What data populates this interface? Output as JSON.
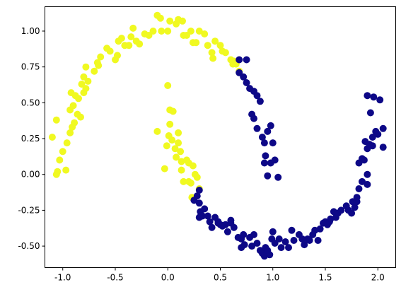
{
  "chart_data": {
    "type": "scatter",
    "title": "",
    "xlabel": "",
    "ylabel": "",
    "xlim": [
      -1.17,
      2.17
    ],
    "ylim": [
      -0.65,
      1.17
    ],
    "xticks": [
      "-1.0",
      "-0.5",
      "0.0",
      "0.5",
      "1.0",
      "1.5",
      "2.0"
    ],
    "xtick_values": [
      -1.0,
      -0.5,
      0.0,
      0.5,
      1.0,
      1.5,
      2.0
    ],
    "yticks": [
      "-0.50",
      "-0.25",
      "0.00",
      "0.25",
      "0.50",
      "0.75",
      "1.00"
    ],
    "ytick_values": [
      -0.5,
      -0.25,
      0.0,
      0.25,
      0.5,
      0.75,
      1.0
    ],
    "grid": false,
    "series": [
      {
        "color": "#f0f921",
        "points": [
          [
            -1.1,
            0.26
          ],
          [
            -1.06,
            0.38
          ],
          [
            -1.05,
            0.02
          ],
          [
            -1.06,
            0.0
          ],
          [
            -1.03,
            0.1
          ],
          [
            -1.0,
            0.16
          ],
          [
            -0.97,
            0.03
          ],
          [
            -0.96,
            0.22
          ],
          [
            -0.93,
            0.29
          ],
          [
            -0.93,
            0.45
          ],
          [
            -0.92,
            0.57
          ],
          [
            -0.91,
            0.33
          ],
          [
            -0.9,
            0.48
          ],
          [
            -0.89,
            0.36
          ],
          [
            -0.88,
            0.55
          ],
          [
            -0.86,
            0.42
          ],
          [
            -0.85,
            0.53
          ],
          [
            -0.83,
            0.4
          ],
          [
            -0.82,
            0.63
          ],
          [
            -0.8,
            0.68
          ],
          [
            -0.8,
            0.57
          ],
          [
            -0.78,
            0.6
          ],
          [
            -0.78,
            0.75
          ],
          [
            -0.76,
            0.65
          ],
          [
            -0.7,
            0.72
          ],
          [
            -0.67,
            0.78
          ],
          [
            -0.66,
            0.76
          ],
          [
            -0.64,
            0.82
          ],
          [
            -0.58,
            0.88
          ],
          [
            -0.55,
            0.86
          ],
          [
            -0.5,
            0.8
          ],
          [
            -0.48,
            0.83
          ],
          [
            -0.47,
            0.93
          ],
          [
            -0.44,
            0.95
          ],
          [
            -0.41,
            0.9
          ],
          [
            -0.37,
            0.9
          ],
          [
            -0.35,
            0.96
          ],
          [
            -0.33,
            1.02
          ],
          [
            -0.3,
            0.93
          ],
          [
            -0.27,
            0.91
          ],
          [
            -0.22,
            0.98
          ],
          [
            -0.18,
            0.97
          ],
          [
            -0.14,
            1.0
          ],
          [
            -0.1,
            1.11
          ],
          [
            -0.07,
            1.09
          ],
          [
            -0.06,
            1.0
          ],
          [
            0.0,
            1.0
          ],
          [
            0.02,
            1.07
          ],
          [
            0.08,
            1.05
          ],
          [
            0.1,
            1.08
          ],
          [
            0.14,
            1.07
          ],
          [
            0.15,
            0.97
          ],
          [
            0.18,
            0.97
          ],
          [
            0.22,
            1.0
          ],
          [
            0.24,
            0.92
          ],
          [
            0.27,
            0.92
          ],
          [
            0.3,
            1.0
          ],
          [
            0.35,
            0.98
          ],
          [
            0.38,
            0.9
          ],
          [
            0.42,
            0.85
          ],
          [
            0.43,
            0.81
          ],
          [
            0.45,
            0.93
          ],
          [
            0.5,
            0.9
          ],
          [
            0.52,
            0.86
          ],
          [
            0.55,
            0.85
          ],
          [
            0.6,
            0.8
          ],
          [
            0.62,
            0.77
          ],
          [
            0.63,
            0.79
          ],
          [
            0.65,
            0.77
          ],
          [
            0.68,
            0.72
          ],
          [
            -0.1,
            0.3
          ],
          [
            -0.03,
            0.04
          ],
          [
            -0.01,
            0.2
          ],
          [
            0.0,
            0.62
          ],
          [
            0.01,
            0.27
          ],
          [
            0.02,
            0.35
          ],
          [
            0.02,
            0.45
          ],
          [
            0.05,
            0.44
          ],
          [
            0.04,
            0.24
          ],
          [
            0.07,
            0.18
          ],
          [
            0.08,
            0.12
          ],
          [
            0.1,
            0.22
          ],
          [
            0.1,
            0.29
          ],
          [
            0.12,
            0.16
          ],
          [
            0.13,
            0.09
          ],
          [
            0.13,
            0.03
          ],
          [
            0.15,
            -0.05
          ],
          [
            0.18,
            0.1
          ],
          [
            0.2,
            0.08
          ],
          [
            0.2,
            -0.05
          ],
          [
            0.22,
            -0.06
          ],
          [
            0.24,
            0.06
          ],
          [
            0.26,
            0.0
          ],
          [
            0.28,
            -0.02
          ],
          [
            0.3,
            -0.1
          ],
          [
            0.23,
            -0.16
          ]
        ]
      },
      {
        "color": "#0d0887",
        "points": [
          [
            0.25,
            -0.18
          ],
          [
            0.28,
            -0.15
          ],
          [
            0.3,
            -0.11
          ],
          [
            0.3,
            -0.2
          ],
          [
            0.3,
            -0.3
          ],
          [
            0.31,
            -0.26
          ],
          [
            0.33,
            -0.29
          ],
          [
            0.35,
            -0.24
          ],
          [
            0.38,
            -0.29
          ],
          [
            0.4,
            -0.33
          ],
          [
            0.42,
            -0.37
          ],
          [
            0.45,
            -0.3
          ],
          [
            0.48,
            -0.33
          ],
          [
            0.48,
            -0.34
          ],
          [
            0.5,
            -0.35
          ],
          [
            0.52,
            -0.36
          ],
          [
            0.55,
            -0.35
          ],
          [
            0.57,
            -0.4
          ],
          [
            0.6,
            -0.32
          ],
          [
            0.6,
            -0.34
          ],
          [
            0.63,
            -0.37
          ],
          [
            0.67,
            -0.44
          ],
          [
            0.7,
            -0.51
          ],
          [
            0.7,
            -0.45
          ],
          [
            0.72,
            -0.42
          ],
          [
            0.73,
            -0.49
          ],
          [
            0.78,
            -0.44
          ],
          [
            0.8,
            -0.5
          ],
          [
            0.82,
            -0.42
          ],
          [
            0.85,
            -0.48
          ],
          [
            0.88,
            -0.53
          ],
          [
            0.9,
            -0.55
          ],
          [
            0.92,
            -0.57
          ],
          [
            0.93,
            -0.51
          ],
          [
            0.95,
            -0.53
          ],
          [
            0.97,
            -0.56
          ],
          [
            0.99,
            -0.45
          ],
          [
            1.0,
            -0.4
          ],
          [
            1.02,
            -0.48
          ],
          [
            1.06,
            -0.45
          ],
          [
            1.08,
            -0.51
          ],
          [
            1.12,
            -0.47
          ],
          [
            1.15,
            -0.51
          ],
          [
            1.18,
            -0.39
          ],
          [
            1.2,
            -0.46
          ],
          [
            1.25,
            -0.42
          ],
          [
            1.28,
            -0.45
          ],
          [
            1.3,
            -0.49
          ],
          [
            1.33,
            -0.45
          ],
          [
            1.35,
            -0.46
          ],
          [
            1.38,
            -0.42
          ],
          [
            1.4,
            -0.39
          ],
          [
            1.43,
            -0.46
          ],
          [
            1.45,
            -0.38
          ],
          [
            1.48,
            -0.34
          ],
          [
            1.5,
            -0.33
          ],
          [
            1.52,
            -0.35
          ],
          [
            1.54,
            -0.33
          ],
          [
            1.55,
            -0.31
          ],
          [
            1.58,
            -0.26
          ],
          [
            1.6,
            -0.3
          ],
          [
            1.62,
            -0.27
          ],
          [
            1.65,
            -0.25
          ],
          [
            1.7,
            -0.22
          ],
          [
            1.72,
            -0.25
          ],
          [
            1.75,
            -0.27
          ],
          [
            1.76,
            -0.19
          ],
          [
            1.78,
            -0.23
          ],
          [
            1.8,
            -0.19
          ],
          [
            1.8,
            -0.16
          ],
          [
            1.82,
            0.08
          ],
          [
            1.82,
            -0.1
          ],
          [
            1.85,
            -0.05
          ],
          [
            1.85,
            0.11
          ],
          [
            1.87,
            0.1
          ],
          [
            1.88,
            0.23
          ],
          [
            1.9,
            0.0
          ],
          [
            1.9,
            -0.07
          ],
          [
            1.9,
            0.18
          ],
          [
            1.92,
            0.21
          ],
          [
            1.93,
            0.43
          ],
          [
            1.95,
            0.2
          ],
          [
            1.95,
            0.26
          ],
          [
            1.96,
            0.54
          ],
          [
            1.98,
            0.3
          ],
          [
            2.0,
            0.28
          ],
          [
            2.02,
            0.52
          ],
          [
            2.05,
            0.32
          ],
          [
            2.05,
            0.19
          ],
          [
            1.9,
            0.55
          ],
          [
            0.68,
            0.8
          ],
          [
            0.68,
            0.71
          ],
          [
            0.72,
            0.68
          ],
          [
            0.75,
            0.8
          ],
          [
            0.75,
            0.64
          ],
          [
            0.78,
            0.6
          ],
          [
            0.8,
            0.42
          ],
          [
            0.82,
            0.58
          ],
          [
            0.82,
            0.39
          ],
          [
            0.85,
            0.55
          ],
          [
            0.85,
            0.32
          ],
          [
            0.88,
            0.51
          ],
          [
            0.9,
            0.26
          ],
          [
            0.92,
            0.22
          ],
          [
            0.92,
            0.08
          ],
          [
            0.93,
            0.13
          ],
          [
            0.95,
            0.3
          ],
          [
            0.95,
            -0.01
          ],
          [
            0.98,
            0.08
          ],
          [
            0.98,
            0.34
          ],
          [
            1.0,
            0.22
          ],
          [
            1.02,
            0.1
          ],
          [
            1.05,
            -0.02
          ]
        ]
      }
    ]
  }
}
